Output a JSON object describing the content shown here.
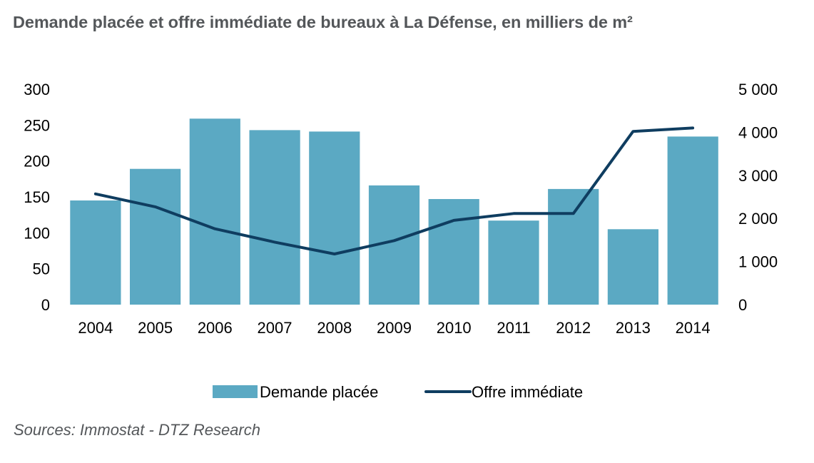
{
  "title": "Demande placée et offre immédiate de bureaux à La Défense, en milliers de m²",
  "source": "Sources: Immostat - DTZ Research",
  "colors": {
    "bar": "#5ba9c3",
    "line": "#0f3d60",
    "title": "#54575a"
  },
  "chart_data": {
    "type": "bar",
    "title": "Demande placée et offre immédiate de bureaux à La Défense, en milliers de m²",
    "xlabel": "",
    "ylabel": "",
    "categories": [
      "2004",
      "2005",
      "2006",
      "2007",
      "2008",
      "2009",
      "2010",
      "2011",
      "2012",
      "2013",
      "2014"
    ],
    "series": [
      {
        "name": "Demande placée",
        "type": "bar",
        "axis": "left",
        "values": [
          145,
          189,
          259,
          243,
          241,
          166,
          147,
          117,
          161,
          105,
          234
        ]
      },
      {
        "name": "Offre immédiate",
        "type": "line",
        "axis": "right",
        "values": [
          2570,
          2270,
          1760,
          1450,
          1175,
          1485,
          1955,
          2115,
          2115,
          4020,
          4100
        ]
      }
    ],
    "ylim": [
      0,
      300
    ],
    "y_ticks": [
      "0",
      "50",
      "100",
      "150",
      "200",
      "250",
      "300"
    ],
    "y_tick_values": [
      0,
      50,
      100,
      150,
      200,
      250,
      300
    ],
    "y2lim": [
      0,
      5000
    ],
    "y2_ticks": [
      "0",
      "1 000",
      "2 000",
      "3 000",
      "4 000",
      "5 000"
    ],
    "y2_tick_values": [
      0,
      1000,
      2000,
      3000,
      4000,
      5000
    ],
    "grid": false,
    "legend": {
      "position": "bottom",
      "entries": [
        "Demande placée",
        "Offre immédiate"
      ]
    }
  }
}
